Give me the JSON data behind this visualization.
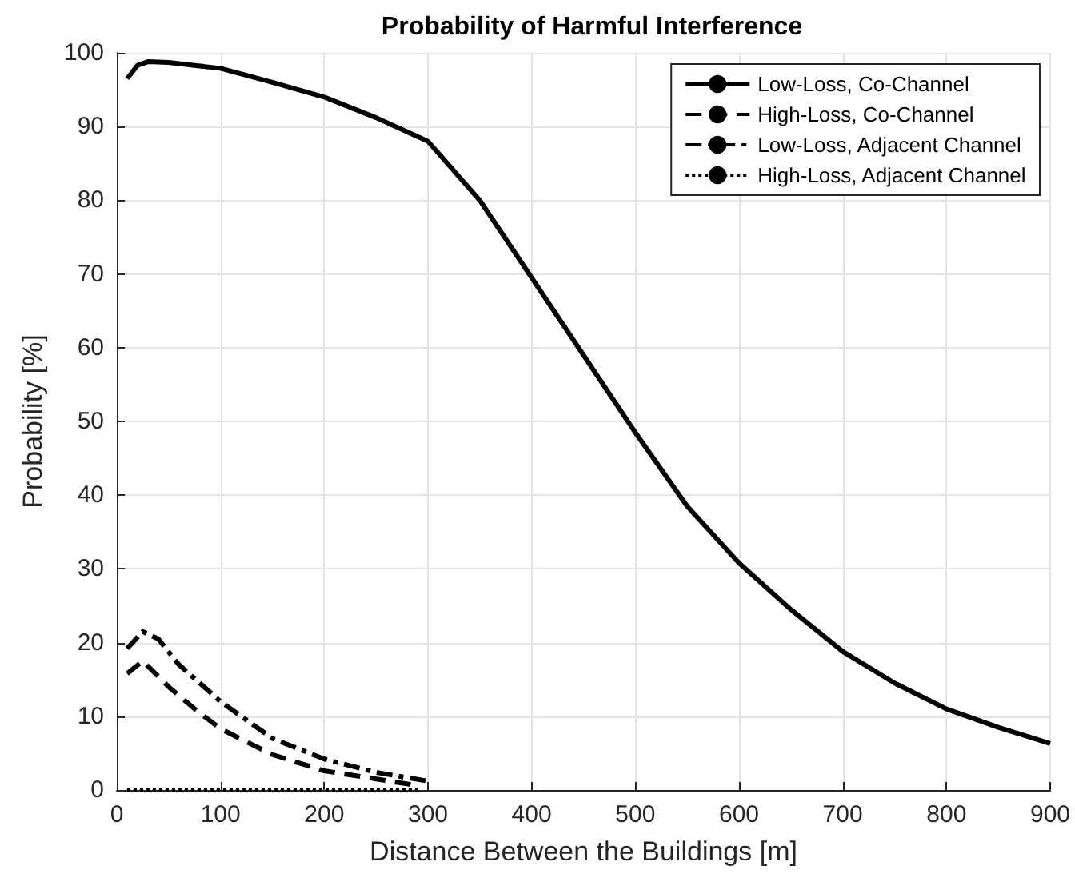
{
  "chart_data": {
    "type": "line",
    "title": "Probability of Harmful Interference",
    "xlabel": "Distance Between the Buildings [m]",
    "ylabel": "Probability [%]",
    "xlim": [
      0,
      900
    ],
    "ylim": [
      0,
      100
    ],
    "xticks": [
      0,
      100,
      200,
      300,
      400,
      500,
      600,
      700,
      800,
      900
    ],
    "yticks": [
      0,
      10,
      20,
      30,
      40,
      50,
      60,
      70,
      80,
      90,
      100
    ],
    "grid": true,
    "legend": "top right",
    "marker": "none",
    "series": [
      {
        "name": "Low-Loss, Co-Channel",
        "color": "#000000",
        "line_style": "solid",
        "x": [
          10,
          20,
          30,
          50,
          75,
          100,
          150,
          200,
          250,
          300,
          350,
          400,
          450,
          500,
          550,
          600,
          650,
          700,
          750,
          800,
          850,
          900
        ],
        "values": [
          96.5,
          98.3,
          98.8,
          98.7,
          98.3,
          97.9,
          96,
          94,
          91.2,
          88,
          80,
          69.5,
          59,
          48.5,
          38.5,
          30.8,
          24.5,
          18.8,
          14.5,
          11,
          8.5,
          6.3
        ]
      },
      {
        "name": "High-Loss, Co-Channel",
        "color": "#000000",
        "line_style": "dashed",
        "x": [
          10,
          25,
          50,
          75,
          100,
          150,
          200,
          250,
          290
        ],
        "values": [
          15.8,
          17.5,
          14,
          11,
          8.3,
          4.8,
          2.6,
          1.5,
          0.6
        ]
      },
      {
        "name": "Low-Loss, Adjacent Channel",
        "color": "#000000",
        "line_style": "dashdot",
        "x": [
          10,
          25,
          40,
          60,
          100,
          150,
          200,
          250,
          300
        ],
        "values": [
          19.2,
          21.5,
          20.5,
          17,
          12,
          7,
          4.2,
          2.4,
          1.2
        ]
      },
      {
        "name": "High-Loss, Adjacent Channel",
        "color": "#000000",
        "line_style": "dotted",
        "x": [
          10,
          100,
          200,
          290
        ],
        "values": [
          0,
          0,
          0,
          0
        ]
      }
    ]
  }
}
